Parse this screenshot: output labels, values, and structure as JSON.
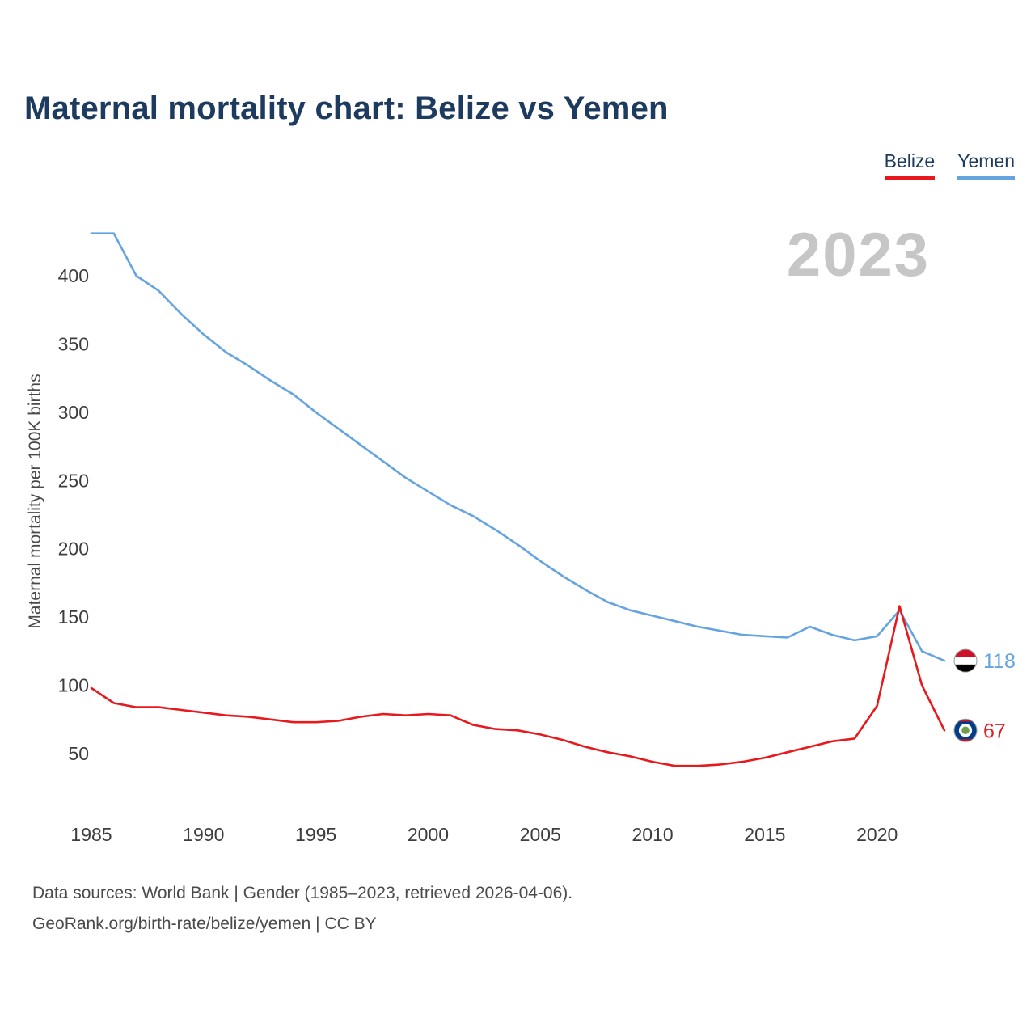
{
  "title": "Maternal mortality chart: Belize vs Yemen",
  "watermark": "2023",
  "legend": [
    {
      "label": "Belize",
      "color": "#e8191d"
    },
    {
      "label": "Yemen",
      "color": "#64a4e0"
    }
  ],
  "footer": {
    "line1": "Data sources: World Bank | Gender (1985–2023, retrieved 2026-04-06).",
    "line2": "GeoRank.org/birth-rate/belize/yemen | CC BY"
  },
  "chart_data": {
    "type": "line",
    "title": "Maternal mortality chart: Belize vs Yemen",
    "xlabel": "",
    "ylabel": "Maternal mortality per 100K births",
    "x_range": [
      1985,
      2023
    ],
    "ylim": [
      0,
      450
    ],
    "y_ticks": [
      50,
      100,
      150,
      200,
      250,
      300,
      350,
      400
    ],
    "x_ticks": [
      1985,
      1990,
      1995,
      2000,
      2005,
      2010,
      2015,
      2020
    ],
    "grid": false,
    "legend_position": "top-right",
    "x": [
      1985,
      1986,
      1987,
      1988,
      1989,
      1990,
      1991,
      1992,
      1993,
      1994,
      1995,
      1996,
      1997,
      1998,
      1999,
      2000,
      2001,
      2002,
      2003,
      2004,
      2005,
      2006,
      2007,
      2008,
      2009,
      2010,
      2011,
      2012,
      2013,
      2014,
      2015,
      2016,
      2017,
      2018,
      2019,
      2020,
      2021,
      2022,
      2023
    ],
    "series": [
      {
        "name": "Yemen",
        "color": "#64a4e0",
        "flag": "yemen",
        "end_label": "118",
        "values": [
          431,
          431,
          400,
          389,
          372,
          357,
          344,
          334,
          323,
          313,
          300,
          288,
          276,
          264,
          252,
          242,
          232,
          224,
          214,
          203,
          191,
          180,
          170,
          161,
          155,
          151,
          147,
          143,
          140,
          137,
          136,
          135,
          143,
          137,
          133,
          136,
          155,
          125,
          118
        ]
      },
      {
        "name": "Belize",
        "color": "#e8191d",
        "flag": "belize",
        "end_label": "67",
        "values": [
          98,
          87,
          84,
          84,
          82,
          80,
          78,
          77,
          75,
          73,
          73,
          74,
          77,
          79,
          78,
          79,
          78,
          71,
          68,
          67,
          64,
          60,
          55,
          51,
          48,
          44,
          41,
          41,
          42,
          44,
          47,
          51,
          55,
          59,
          61,
          85,
          158,
          100,
          67
        ]
      }
    ]
  }
}
